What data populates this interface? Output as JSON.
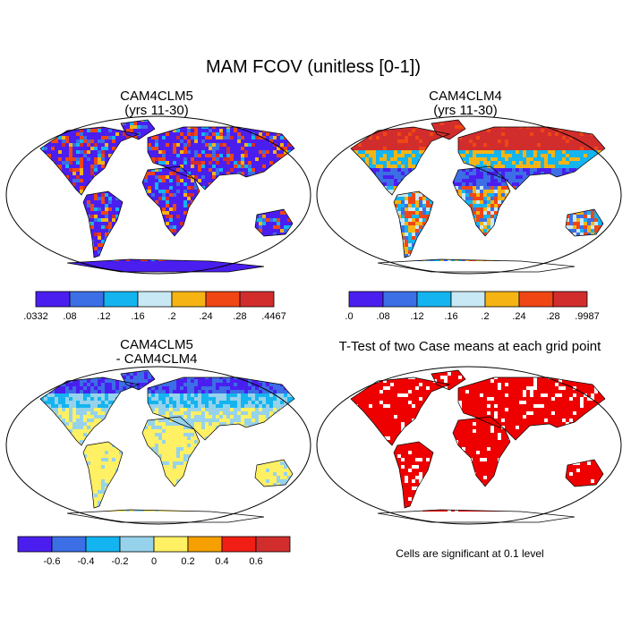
{
  "title": "MAM FCOV (unitless [0-1])",
  "footnote": "Cells are significant at 0.1 level",
  "chart_data": [
    {
      "type": "heatmap",
      "panel": "top-left",
      "title_line1": "CAM4CLM5",
      "title_line2": "(yrs 11-30)",
      "levels": [
        ".0332",
        ".08",
        ".12",
        ".16",
        ".2",
        ".24",
        ".28",
        ".4467"
      ],
      "colors": [
        "#4b1ef0",
        "#3c6ee6",
        "#14b4f0",
        "#c8e8f5",
        "#f5b414",
        "#f04614",
        "#d22d2d"
      ]
    },
    {
      "type": "heatmap",
      "panel": "top-right",
      "title_line1": "CAM4CLM4",
      "title_line2": "(yrs 11-30)",
      "levels": [
        ".0",
        ".08",
        ".12",
        ".16",
        ".2",
        ".24",
        ".28",
        ".9987"
      ],
      "colors": [
        "#4b1ef0",
        "#3c6ee6",
        "#14b4f0",
        "#c8e8f5",
        "#f5b414",
        "#f04614",
        "#d22d2d"
      ]
    },
    {
      "type": "heatmap",
      "panel": "bottom-left",
      "title_line1": "CAM4CLM5",
      "title_line2": "- CAM4CLM4",
      "levels": [
        "-0.6",
        "-0.4",
        "-0.2",
        "0",
        "0.2",
        "0.4",
        "0.6"
      ],
      "colors": [
        "#4b1ef0",
        "#3c6ee6",
        "#14b4f0",
        "#96d2eb",
        "#fff064",
        "#f5a000",
        "#f01e14",
        "#d22d2d"
      ]
    },
    {
      "type": "heatmap",
      "panel": "bottom-right",
      "title_line1": "T-Test of two Case means at each grid point",
      "colors": [
        "#ee0000"
      ]
    }
  ]
}
